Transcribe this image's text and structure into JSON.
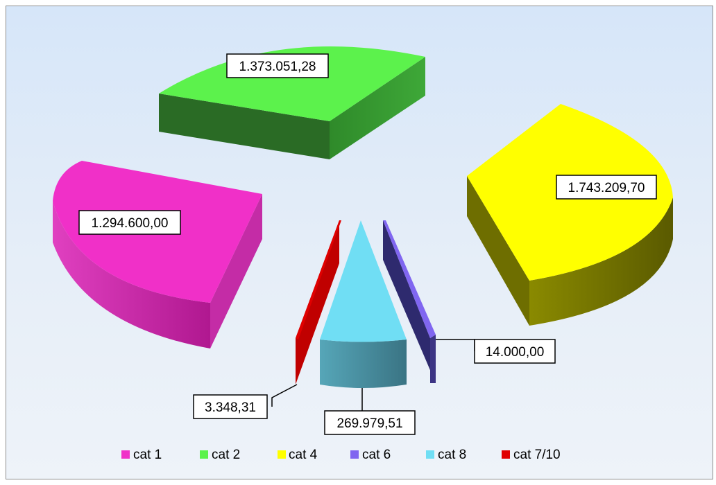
{
  "chart_data": {
    "type": "pie",
    "style": "3d-exploded",
    "categories": [
      "cat 1",
      "cat 2",
      "cat 4",
      "cat 6",
      "cat 8",
      "cat 7/10"
    ],
    "values": [
      1294600.0,
      1373051.28,
      1743209.7,
      14000.0,
      269979.51,
      3348.31
    ],
    "data_labels": [
      "1.294.600,00",
      "1.373.051,28",
      "1.743.209,70",
      "14.000,00",
      "269.979,51",
      "3.348,31"
    ],
    "colors": [
      "#f030c8",
      "#5cf24c",
      "#ffff00",
      "#8066f0",
      "#70def4",
      "#e00000"
    ],
    "legend": {
      "placement": "bottom",
      "entries": [
        "cat 1",
        "cat 2",
        "cat 4",
        "cat 6",
        "cat 8",
        "cat 7/10"
      ]
    },
    "title": ""
  }
}
